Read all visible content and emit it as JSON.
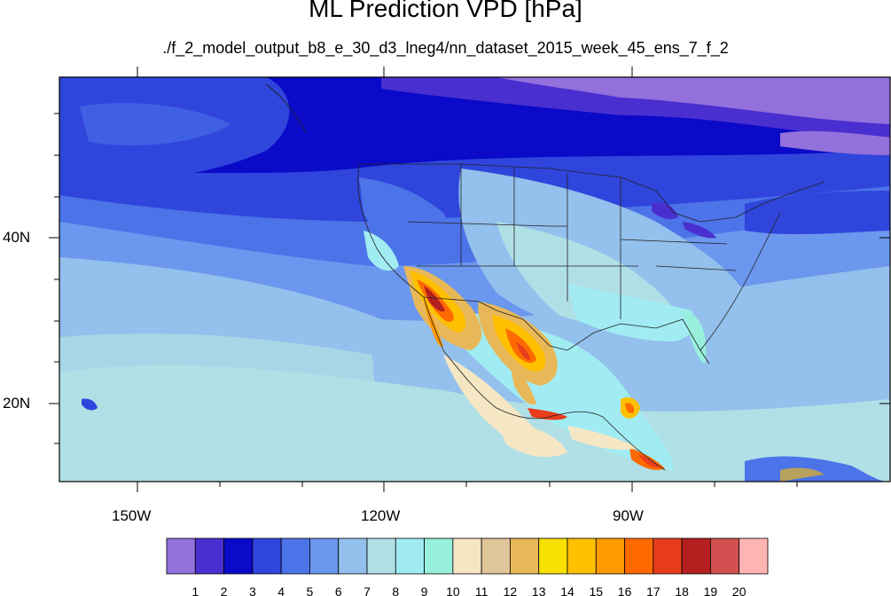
{
  "title": "ML Prediction VPD [hPa]",
  "subtitle": "./f_2_model_output_b8_e_30_d3_lneg4/nn_dataset_2015_week_45_ens_7_f_2",
  "lon_labels": [
    "150W",
    "120W",
    "90W"
  ],
  "lat_labels": [
    "40N",
    "20N"
  ],
  "colorbar": {
    "colors": [
      "#9370db",
      "#4a2fd0",
      "#0a0ac8",
      "#2f45dc",
      "#4c73e8",
      "#6b97ee",
      "#93c0ec",
      "#b0e0e6",
      "#a0ecf2",
      "#98f0dc",
      "#f5e6c4",
      "#e0c49a",
      "#e8b858",
      "#f8e000",
      "#ffc000",
      "#ff9a00",
      "#ff6a00",
      "#e83c1c",
      "#b42020",
      "#d25050",
      "#ffb4b4"
    ],
    "labels": [
      "1",
      "2",
      "3",
      "4",
      "5",
      "6",
      "7",
      "8",
      "9",
      "10",
      "11",
      "12",
      "13",
      "14",
      "15",
      "16",
      "17",
      "18",
      "19",
      "20"
    ]
  }
}
